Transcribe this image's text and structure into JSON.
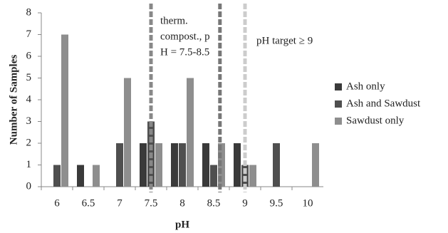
{
  "chart_data": {
    "type": "bar",
    "categories": [
      "6",
      "6.5",
      "7",
      "7.5",
      "8",
      "8.5",
      "9",
      "9.5",
      "10"
    ],
    "series": [
      {
        "name": "Ash only",
        "color": "#3a3a3a",
        "values": [
          0,
          1,
          0,
          2,
          2,
          2,
          2,
          0,
          0
        ]
      },
      {
        "name": "Ash and Sawdust",
        "color": "#4f4f4f",
        "values": [
          1,
          0,
          2,
          3,
          2,
          1,
          1,
          2,
          0
        ]
      },
      {
        "name": "Sawdust only",
        "color": "#8e8e8e",
        "values": [
          7,
          1,
          5,
          2,
          5,
          2,
          1,
          0,
          2
        ]
      }
    ],
    "ylim": [
      0,
      8
    ],
    "yticks": [
      0,
      1,
      2,
      3,
      4,
      5,
      6,
      7,
      8
    ],
    "x_label": "pH",
    "y_label": "Number of Samples",
    "legend": "right",
    "reference_lines": [
      {
        "value": 7.5,
        "color": "#888888"
      },
      {
        "value": 8.6,
        "color": "#777777"
      },
      {
        "value": 9,
        "color": "#cccccc"
      }
    ],
    "annotations": [
      {
        "lines": [
          "therm.",
          "compost., p",
          "H = 7.5-8.5"
        ]
      },
      {
        "lines": [
          "pH target ≥ 9"
        ]
      }
    ]
  }
}
